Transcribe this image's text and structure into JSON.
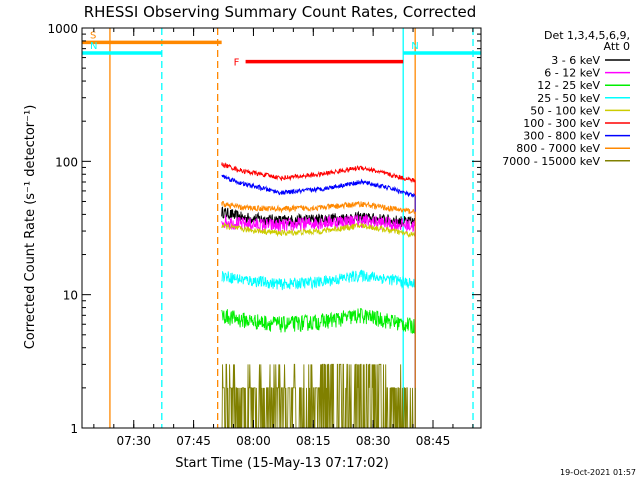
{
  "chart_data": {
    "type": "line",
    "title": "RHESSI Observing Summary Count Rates, Corrected",
    "xlabel": "Start Time (15-May-13 07:17:02)",
    "ylabel": "Corrected Count Rate (s⁻¹ detector⁻¹)",
    "yscale": "log",
    "ylim": [
      1,
      1000
    ],
    "xlim_minutes": [
      0,
      100
    ],
    "x_unit": "minutes since 07:17:02",
    "x_ticks": [
      {
        "minutes": 12.97,
        "label": "07:30"
      },
      {
        "minutes": 27.97,
        "label": "07:45"
      },
      {
        "minutes": 42.97,
        "label": "08:00"
      },
      {
        "minutes": 57.97,
        "label": "08:15"
      },
      {
        "minutes": 72.97,
        "label": "08:30"
      },
      {
        "minutes": 87.97,
        "label": "08:45"
      }
    ],
    "y_ticks": [
      {
        "value": 1,
        "label": "1"
      },
      {
        "value": 10,
        "label": "10"
      },
      {
        "value": 100,
        "label": "100"
      },
      {
        "value": 1000,
        "label": "1000"
      }
    ],
    "legend_header": [
      "Det 1,3,4,5,6,9,",
      "Att 0"
    ],
    "legend_position": "right",
    "data_window_minutes": [
      35.0,
      83.5
    ],
    "series": [
      {
        "name": "3 - 6 keV",
        "color": "#000000",
        "x": [
          35,
          40,
          50,
          60,
          70,
          78,
          83
        ],
        "y": [
          42,
          38,
          36,
          37,
          38,
          36,
          35
        ]
      },
      {
        "name": "6 - 12 keV",
        "color": "#ff00ff",
        "x": [
          35,
          40,
          50,
          60,
          70,
          78,
          83
        ],
        "y": [
          36,
          34,
          33,
          35,
          36,
          34,
          33
        ]
      },
      {
        "name": "12 - 25 keV",
        "color": "#00ee00",
        "x": [
          35,
          40,
          50,
          60,
          70,
          78,
          83
        ],
        "y": [
          7,
          6.5,
          6,
          6.3,
          7,
          6.3,
          5.8
        ]
      },
      {
        "name": "25 - 50 keV",
        "color": "#00ffff",
        "x": [
          35,
          40,
          50,
          60,
          70,
          78,
          83
        ],
        "y": [
          14,
          13,
          12,
          12.5,
          14,
          13,
          12
        ]
      },
      {
        "name": "50 - 100 keV",
        "color": "#cccc00",
        "x": [
          35,
          40,
          50,
          60,
          70,
          78,
          83
        ],
        "y": [
          33,
          31,
          29,
          30,
          33,
          30,
          28
        ]
      },
      {
        "name": "100 - 300 keV",
        "color": "#ff0000",
        "x": [
          35,
          40,
          50,
          60,
          70,
          78,
          83
        ],
        "y": [
          95,
          85,
          75,
          80,
          90,
          78,
          72
        ]
      },
      {
        "name": "300 - 800 keV",
        "color": "#0000ff",
        "x": [
          35,
          40,
          50,
          60,
          70,
          78,
          83
        ],
        "y": [
          78,
          68,
          58,
          62,
          70,
          62,
          55
        ]
      },
      {
        "name": "800 - 7000 keV",
        "color": "#ff8800",
        "x": [
          35,
          40,
          50,
          60,
          70,
          78,
          83
        ],
        "y": [
          48,
          45,
          44,
          45,
          48,
          44,
          42
        ]
      },
      {
        "name": "7000 - 15000 keV",
        "color": "#808000",
        "x": [
          35,
          40,
          50,
          60,
          70,
          78,
          83
        ],
        "y": [
          2,
          2,
          2,
          2.5,
          3,
          2,
          2
        ]
      }
    ],
    "annotations": [
      {
        "label": "S",
        "color": "#ff8800",
        "x_start": 0,
        "x_end": 35,
        "level": 780,
        "desc": "SAA interval"
      },
      {
        "label": "N",
        "color": "#00ffff",
        "x_start": 0,
        "x_end": 20,
        "level": 650,
        "desc": "night interval"
      },
      {
        "label": "N",
        "color": "#00ffff",
        "x_start": 80.5,
        "x_end": 100,
        "level": 650,
        "desc": "night interval"
      },
      {
        "label": "F",
        "color": "#ff0000",
        "x_start": 41,
        "x_end": 80.5,
        "level": 560,
        "desc": "flare interval"
      }
    ],
    "vertical_markers": [
      {
        "minutes": 7.0,
        "color": "#ff8800",
        "style": "solid"
      },
      {
        "minutes": 20.0,
        "color": "#00ffff",
        "style": "dashed"
      },
      {
        "minutes": 34.0,
        "color": "#ff8800",
        "style": "dashed"
      },
      {
        "minutes": 80.5,
        "color": "#00ffff",
        "style": "solid"
      },
      {
        "minutes": 83.5,
        "color": "#ff8800",
        "style": "solid"
      },
      {
        "minutes": 98.0,
        "color": "#00ffff",
        "style": "dashed"
      }
    ]
  },
  "footer_timestamp": "19-Oct-2021 01:57"
}
